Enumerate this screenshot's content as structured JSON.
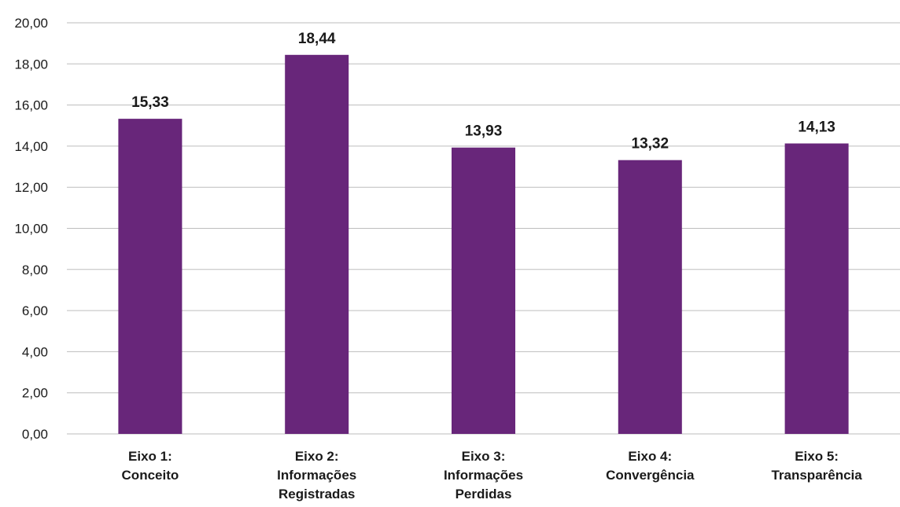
{
  "chart_data": {
    "type": "bar",
    "categories": [
      [
        "Eixo 1:",
        "Conceito"
      ],
      [
        "Eixo 2:",
        "Informações",
        "Registradas"
      ],
      [
        "Eixo 3:",
        "Informações",
        "Perdidas"
      ],
      [
        "Eixo 4:",
        "Convergência"
      ],
      [
        "Eixo 5:",
        "Transparência"
      ]
    ],
    "values": [
      15.33,
      18.44,
      13.93,
      13.32,
      14.13
    ],
    "data_labels": [
      "15,33",
      "18,44",
      "13,93",
      "13,32",
      "14,13"
    ],
    "ylim": [
      0,
      20
    ],
    "yticks": [
      0,
      2,
      4,
      6,
      8,
      10,
      12,
      14,
      16,
      18,
      20
    ],
    "ytick_labels": [
      "0,00",
      "2,00",
      "4,00",
      "6,00",
      "8,00",
      "10,00",
      "12,00",
      "14,00",
      "16,00",
      "18,00",
      "20,00"
    ],
    "grid": true,
    "bar_color": "#68267a",
    "title": "",
    "xlabel": "",
    "ylabel": ""
  }
}
